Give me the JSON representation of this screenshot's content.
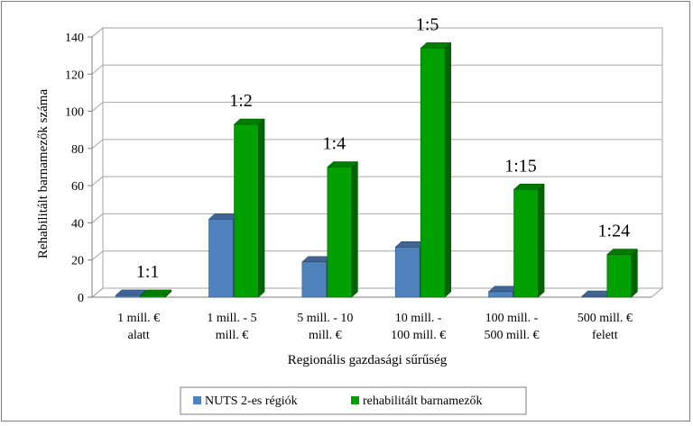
{
  "chart_data": {
    "type": "bar",
    "style": "3d-clustered-column",
    "title": "",
    "xlabel": "Regionális gazdasági sűrűség",
    "ylabel": "Rehabilitált barnamezők száma",
    "ylim": [
      0,
      140
    ],
    "yticks": [
      0,
      20,
      40,
      60,
      80,
      100,
      120,
      140
    ],
    "gridlines": true,
    "legend_position": "bottom-right",
    "categories": [
      [
        "1 mill. €",
        "alatt"
      ],
      [
        "1 mill. - 5",
        "mill. €"
      ],
      [
        "5 mill. - 10",
        "mill. €"
      ],
      [
        "10 mill. -",
        "100 mill. €"
      ],
      [
        "100 mill. -",
        "500 mill. €"
      ],
      [
        "500 mill. €",
        "felett"
      ]
    ],
    "series": [
      {
        "name": "NUTS 2-es régiók",
        "color": "#4f81bd",
        "values": [
          1,
          42,
          19,
          27,
          3,
          0.5
        ]
      },
      {
        "name": "rehabilitált barnamezők",
        "color": "#00a000",
        "values": [
          1,
          93,
          70,
          134,
          58,
          23
        ]
      }
    ],
    "annotations": [
      "1:1",
      "1:2",
      "1:4",
      "1:5",
      "1:15",
      "1:24"
    ]
  }
}
